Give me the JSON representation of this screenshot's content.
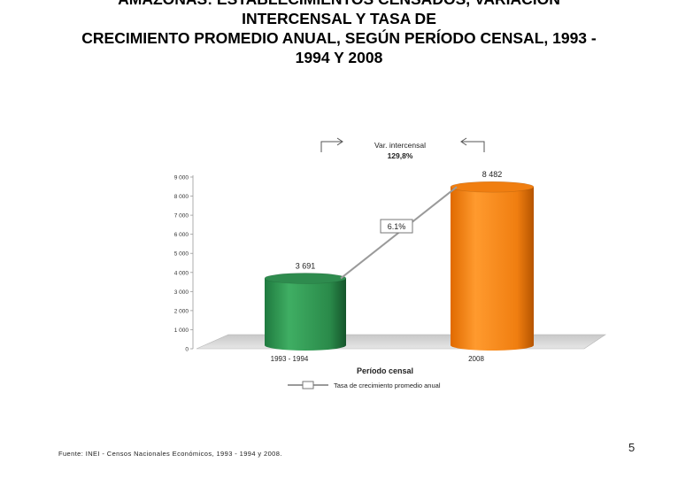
{
  "title_lines": [
    "AMAZONAS: ESTABLECIMIENTOS CENSADOS, VARIACIÓN",
    "INTERCENSAL Y TASA DE",
    "CRECIMIENTO PROMEDIO ANUAL, SEGÚN PERÍODO CENSAL, 1993 -",
    "1994 Y 2008"
  ],
  "chart_data": {
    "type": "bar",
    "categories": [
      "1993 - 1994",
      "2008"
    ],
    "values": [
      3691,
      8482
    ],
    "value_labels": [
      "3 691",
      "8 482"
    ],
    "colors": [
      "#2e8b4e",
      "#f07e10"
    ],
    "ylim": [
      0,
      9000
    ],
    "yticks": [
      0,
      1000,
      2000,
      3000,
      4000,
      5000,
      6000,
      7000,
      8000,
      9000
    ],
    "ytick_labels": [
      "0",
      "1 000",
      "2 000",
      "3 000",
      "4 000",
      "5 000",
      "6 000",
      "7 000",
      "8 000",
      "9 000"
    ],
    "xlabel": "Período censal",
    "ylabel": "",
    "legend": "Tasa de crecimiento promedio anual",
    "line_label": "6.1%",
    "variation_label": "Var. intercensal",
    "variation_value": "129,8%",
    "grid": false,
    "legend_position": "bottom"
  },
  "footer": {
    "source": "Fuente: INEI - Censos Nacionales Económicos, 1993 - 1994 y 2008.",
    "page_number": "5"
  }
}
